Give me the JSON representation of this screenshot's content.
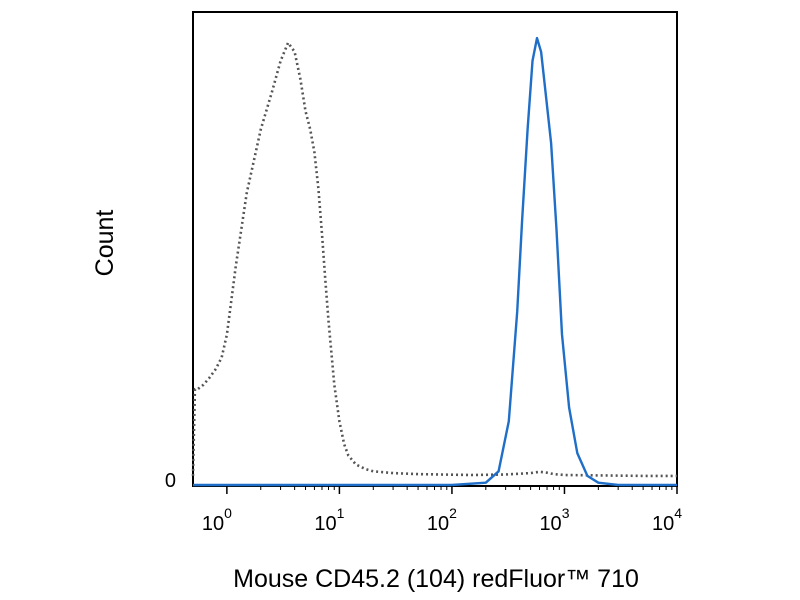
{
  "chart_data": {
    "type": "line",
    "title": "",
    "xlabel": "Mouse CD45.2 (104) redFluor™ 710",
    "ylabel": "Count",
    "x_scale": "log",
    "xlim": [
      0.5,
      10000
    ],
    "ylim": [
      0,
      100
    ],
    "grid": false,
    "legend": "none",
    "x_ticks": [
      {
        "base": "10",
        "exp": "0",
        "value": 1
      },
      {
        "base": "10",
        "exp": "1",
        "value": 10
      },
      {
        "base": "10",
        "exp": "2",
        "value": 100
      },
      {
        "base": "10",
        "exp": "3",
        "value": 1000
      },
      {
        "base": "10",
        "exp": "4",
        "value": 10000
      }
    ],
    "y_ticks": [
      {
        "label": "0",
        "value": 0
      }
    ],
    "series": [
      {
        "style": "dotted",
        "color": "#555555",
        "x": [
          0.5,
          0.52,
          0.55,
          0.62,
          0.7,
          0.8,
          0.9,
          1.0,
          1.2,
          1.5,
          2.0,
          2.5,
          3.0,
          3.5,
          4.0,
          4.5,
          5.0,
          5.5,
          6.0,
          6.5,
          7.0,
          7.5,
          8.0,
          9.0,
          10.0,
          11.0,
          12.0,
          14.0,
          17.0,
          20.0,
          30.0,
          50.0,
          80.0,
          150.0,
          300.0,
          500.0,
          600.0,
          700.0,
          800.0,
          1000.0,
          2000.0,
          5000.0,
          10000.0
        ],
        "y": [
          2,
          21,
          21,
          22,
          23.5,
          25.5,
          28,
          33,
          48,
          64,
          78,
          86,
          93,
          97,
          95,
          89,
          82,
          78,
          73,
          65,
          55,
          45,
          36,
          22,
          14,
          9,
          6.5,
          4.5,
          3.5,
          3,
          2.6,
          2.4,
          2.3,
          2.2,
          2.3,
          2.6,
          2.9,
          2.7,
          2.4,
          2.2,
          2.1,
          2.0,
          2.0
        ]
      },
      {
        "style": "solid",
        "color": "#1f6ec7",
        "x": [
          0.5,
          100.0,
          200.0,
          260.0,
          320.0,
          380.0,
          420.0,
          470.0,
          520.0,
          570.0,
          620.0,
          680.0,
          760.0,
          850.0,
          950.0,
          1100.0,
          1300.0,
          1600.0,
          2000.0,
          3000.0,
          10000.0
        ],
        "y": [
          0,
          0,
          0.5,
          3,
          14,
          38,
          58,
          78,
          93,
          98,
          95,
          86,
          75,
          56,
          33,
          17,
          7,
          2,
          0.5,
          0,
          0
        ]
      }
    ]
  }
}
